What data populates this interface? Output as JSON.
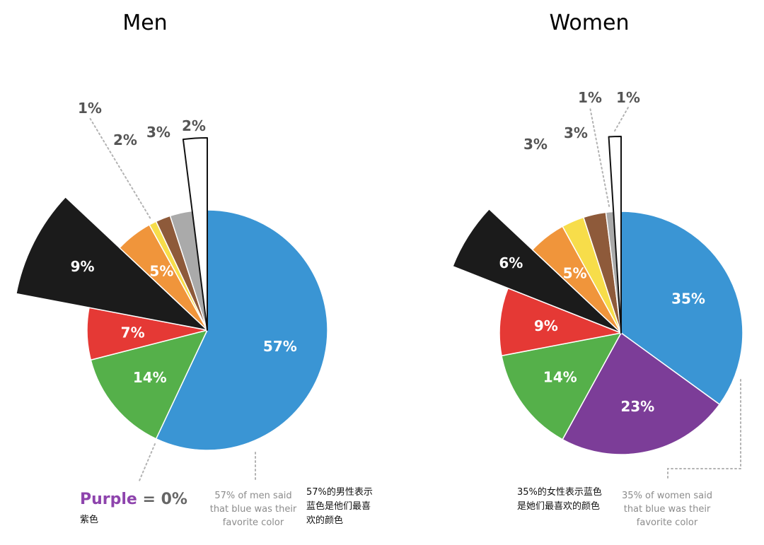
{
  "chart_data": [
    {
      "type": "pie",
      "title": "Men",
      "slices": [
        {
          "name": "Blue",
          "value": 57,
          "label": "57%",
          "color": "#3a95d4",
          "label_pos": "inside"
        },
        {
          "name": "Green",
          "value": 14,
          "label": "14%",
          "color": "#55b04a",
          "label_pos": "inside"
        },
        {
          "name": "Red",
          "value": 7,
          "label": "7%",
          "color": "#e53935",
          "label_pos": "inside"
        },
        {
          "name": "Black",
          "value": 9,
          "label": "9%",
          "color": "#1b1b1b",
          "label_pos": "inside",
          "exploded": true
        },
        {
          "name": "Orange",
          "value": 5,
          "label": "5%",
          "color": "#f0953b",
          "label_pos": "inside"
        },
        {
          "name": "Yellow",
          "value": 1,
          "label": "1%",
          "color": "#f7dd4a",
          "label_pos": "outside-leader"
        },
        {
          "name": "Brown",
          "value": 2,
          "label": "2%",
          "color": "#8e5a3a",
          "label_pos": "outside"
        },
        {
          "name": "Gray",
          "value": 3,
          "label": "3%",
          "color": "#aaaaaa",
          "label_pos": "outside"
        },
        {
          "name": "White",
          "value": 2,
          "label": "2%",
          "color": "#ffffff",
          "label_pos": "outside",
          "outlined": true,
          "extended": true
        }
      ],
      "absent_note": {
        "word": "Purple",
        "rest": " = 0%",
        "word_color": "#8e44ad",
        "chinese": "紫色"
      },
      "note_en": [
        "57% of men said",
        "that blue was their",
        "favorite color"
      ],
      "note_cn": [
        "57%的男性表示",
        "蓝色是他们最喜",
        "欢的颜色"
      ]
    },
    {
      "type": "pie",
      "title": "Women",
      "slices": [
        {
          "name": "Blue",
          "value": 35,
          "label": "35%",
          "color": "#3a95d4",
          "label_pos": "inside"
        },
        {
          "name": "Purple",
          "value": 23,
          "label": "23%",
          "color": "#7c3d98",
          "label_pos": "inside"
        },
        {
          "name": "Green",
          "value": 14,
          "label": "14%",
          "color": "#55b04a",
          "label_pos": "inside"
        },
        {
          "name": "Red",
          "value": 9,
          "label": "9%",
          "color": "#e53935",
          "label_pos": "inside"
        },
        {
          "name": "Black",
          "value": 6,
          "label": "6%",
          "color": "#1b1b1b",
          "label_pos": "inside",
          "exploded": true
        },
        {
          "name": "Orange",
          "value": 5,
          "label": "5%",
          "color": "#f0953b",
          "label_pos": "inside"
        },
        {
          "name": "Yellow",
          "value": 3,
          "label": "3%",
          "color": "#f7dd4a",
          "label_pos": "outside"
        },
        {
          "name": "Brown",
          "value": 3,
          "label": "3%",
          "color": "#8e5a3a",
          "label_pos": "outside"
        },
        {
          "name": "Gray",
          "value": 1,
          "label": "1%",
          "color": "#aaaaaa",
          "label_pos": "outside-leader"
        },
        {
          "name": "White",
          "value": 1,
          "label": "1%",
          "color": "#ffffff",
          "label_pos": "outside-leader",
          "outlined": true,
          "extended": true
        }
      ],
      "note_en": [
        "35% of women said",
        "that blue was their",
        "favorite color"
      ],
      "note_cn": [
        "35%的女性表示蓝色",
        "是她们最喜欢的颜色"
      ]
    }
  ]
}
